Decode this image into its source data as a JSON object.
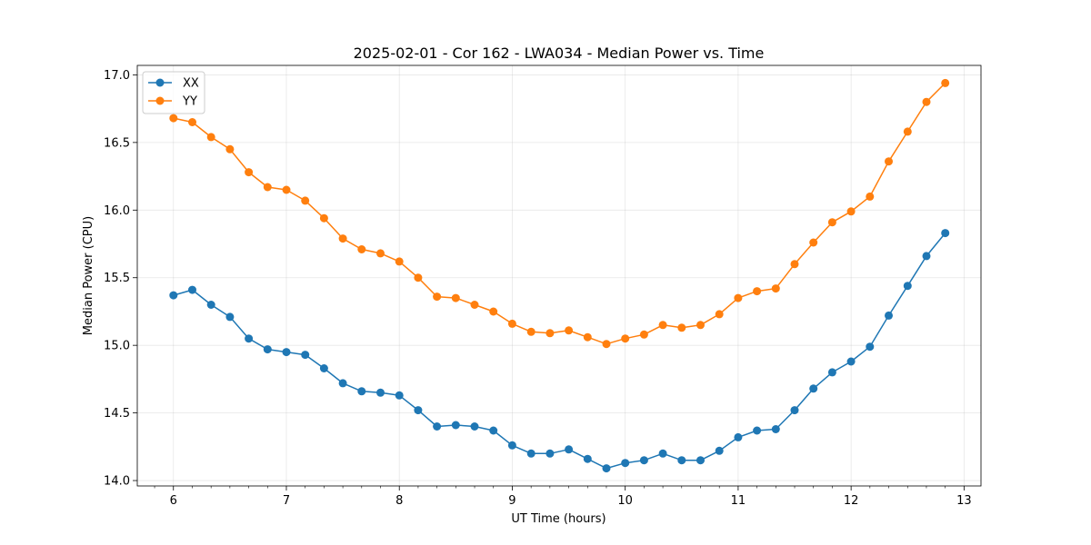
{
  "chart_data": {
    "type": "line",
    "title": "2025-02-01 - Cor 162 - LWA034 - Median Power vs. Time",
    "xlabel": "UT Time (hours)",
    "ylabel": "Median Power (CPU)",
    "xlim": [
      5.68,
      13.15
    ],
    "ylim": [
      13.96,
      17.07
    ],
    "xticks": [
      6,
      7,
      8,
      9,
      10,
      11,
      12,
      13
    ],
    "yticks": [
      14.0,
      14.5,
      15.0,
      15.5,
      16.0,
      16.5,
      17.0
    ],
    "ytick_labels": [
      "14.0",
      "14.5",
      "15.0",
      "15.5",
      "16.0",
      "16.5",
      "17.0"
    ],
    "grid": true,
    "legend_position": "top-left",
    "x": [
      6.0,
      6.1667,
      6.3333,
      6.5,
      6.6667,
      6.8333,
      7.0,
      7.1667,
      7.3333,
      7.5,
      7.6667,
      7.8333,
      8.0,
      8.1667,
      8.3333,
      8.5,
      8.6667,
      8.8333,
      9.0,
      9.1667,
      9.3333,
      9.5,
      9.6667,
      9.8333,
      10.0,
      10.1667,
      10.3333,
      10.5,
      10.6667,
      10.8333,
      11.0,
      11.1667,
      11.3333,
      11.5,
      11.6667,
      11.8333,
      12.0,
      12.1667,
      12.3333,
      12.5,
      12.6667,
      12.8333
    ],
    "series": [
      {
        "name": "XX",
        "color": "#1f77b4",
        "values": [
          15.37,
          15.41,
          15.3,
          15.21,
          15.05,
          14.97,
          14.95,
          14.93,
          14.83,
          14.72,
          14.66,
          14.65,
          14.63,
          14.52,
          14.4,
          14.41,
          14.4,
          14.37,
          14.26,
          14.2,
          14.2,
          14.23,
          14.16,
          14.09,
          14.13,
          14.15,
          14.2,
          14.15,
          14.15,
          14.22,
          14.32,
          14.37,
          14.38,
          14.52,
          14.68,
          14.8,
          14.88,
          14.99,
          15.22,
          15.44,
          15.66,
          15.83
        ]
      },
      {
        "name": "YY",
        "color": "#ff7f0e",
        "values": [
          16.68,
          16.65,
          16.54,
          16.45,
          16.28,
          16.17,
          16.15,
          16.07,
          15.94,
          15.79,
          15.71,
          15.68,
          15.62,
          15.5,
          15.36,
          15.35,
          15.3,
          15.25,
          15.16,
          15.1,
          15.09,
          15.11,
          15.06,
          15.01,
          15.05,
          15.08,
          15.15,
          15.13,
          15.15,
          15.23,
          15.35,
          15.4,
          15.42,
          15.6,
          15.76,
          15.91,
          15.99,
          16.1,
          16.36,
          16.58,
          16.8,
          16.94
        ]
      }
    ]
  }
}
